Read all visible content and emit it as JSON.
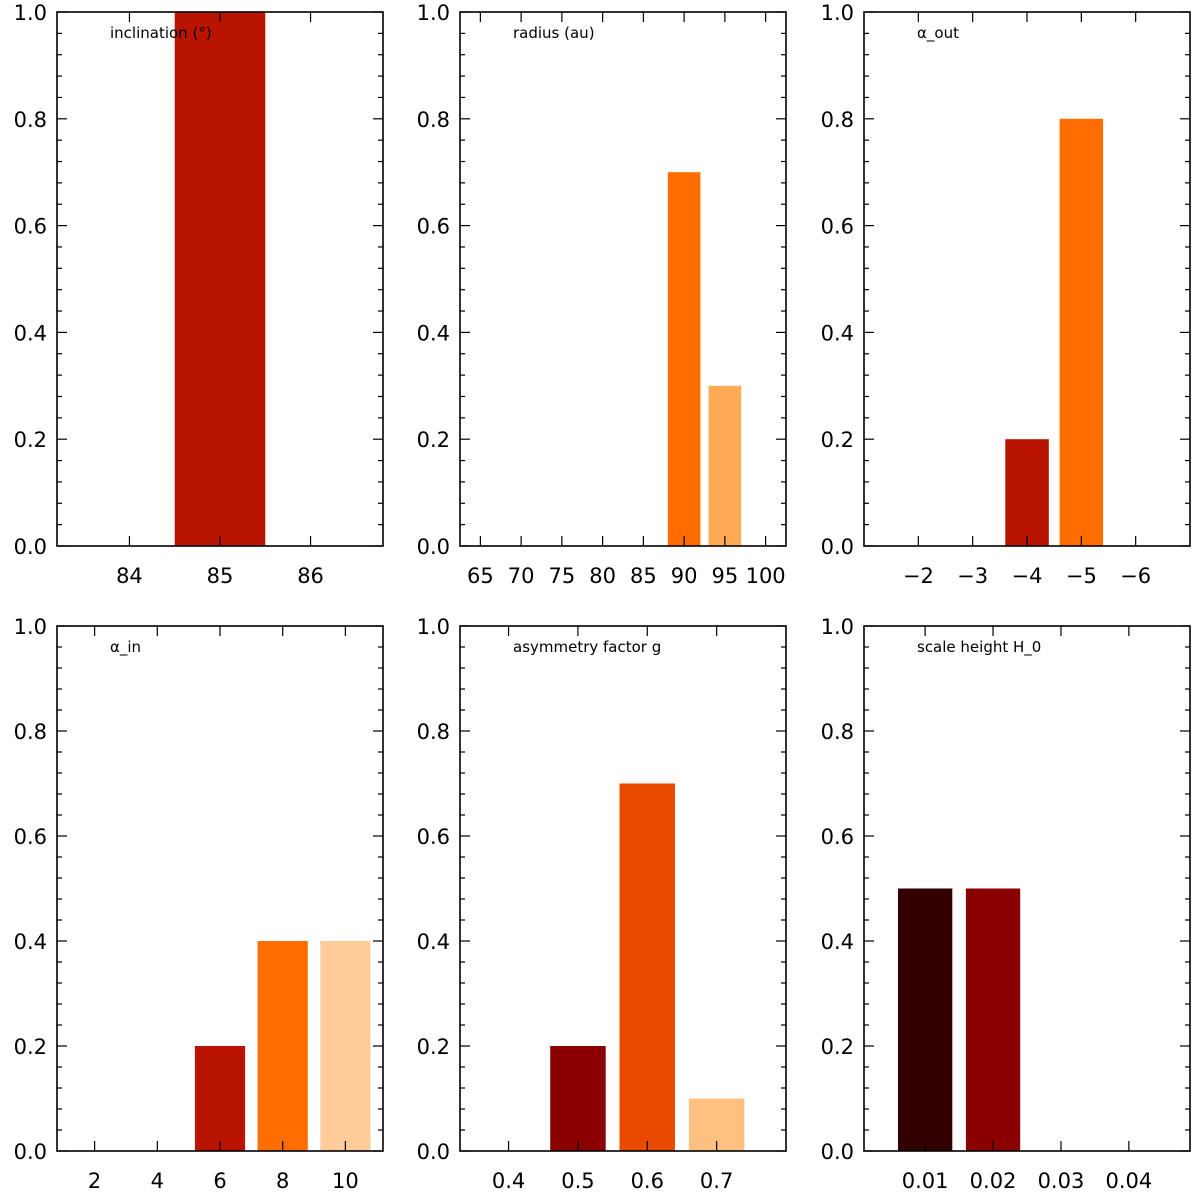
{
  "chart_data": [
    {
      "type": "bar",
      "title": "inclination (°)",
      "xlabel": "",
      "ylabel": "",
      "ylim": [
        0,
        1.0
      ],
      "yticks": [
        "0.0",
        "0.2",
        "0.4",
        "0.6",
        "0.8",
        "1.0"
      ],
      "xlim": [
        83.2,
        86.8
      ],
      "xticks": [
        {
          "value": 84,
          "label": "84"
        },
        {
          "value": 85,
          "label": "85"
        },
        {
          "value": 86,
          "label": "86"
        }
      ],
      "bars": [
        {
          "x": 85,
          "width": 1.0,
          "value": 1.0,
          "color": "#b81400"
        }
      ]
    },
    {
      "type": "bar",
      "title": "radius (au)",
      "xlabel": "",
      "ylabel": "",
      "ylim": [
        0,
        1.0
      ],
      "yticks": [
        "0.0",
        "0.2",
        "0.4",
        "0.6",
        "0.8",
        "1.0"
      ],
      "xlim": [
        62.5,
        102.5
      ],
      "xticks": [
        {
          "value": 65,
          "label": "65"
        },
        {
          "value": 70,
          "label": "70"
        },
        {
          "value": 75,
          "label": "75"
        },
        {
          "value": 80,
          "label": "80"
        },
        {
          "value": 85,
          "label": "85"
        },
        {
          "value": 90,
          "label": "90"
        },
        {
          "value": 95,
          "label": "95"
        },
        {
          "value": 100,
          "label": "100"
        }
      ],
      "bars": [
        {
          "x": 90,
          "width": 4.0,
          "value": 0.7,
          "color": "#ff6d00"
        },
        {
          "x": 95,
          "width": 4.0,
          "value": 0.3,
          "color": "#ffaa55"
        }
      ]
    },
    {
      "type": "bar",
      "title": "α_out",
      "xlabel": "",
      "ylabel": "",
      "ylim": [
        0,
        1.0
      ],
      "yticks": [
        "0.0",
        "0.2",
        "0.4",
        "0.6",
        "0.8",
        "1.0"
      ],
      "xlim": [
        -1.0,
        -7.0
      ],
      "xticks": [
        {
          "value": -2,
          "label": "−2"
        },
        {
          "value": -3,
          "label": "−3"
        },
        {
          "value": -4,
          "label": "−4"
        },
        {
          "value": -5,
          "label": "−5"
        },
        {
          "value": -6,
          "label": "−6"
        }
      ],
      "bars": [
        {
          "x": -4,
          "width": 0.8,
          "value": 0.2,
          "color": "#b81400"
        },
        {
          "x": -5,
          "width": 0.8,
          "value": 0.8,
          "color": "#ff6d00"
        }
      ]
    },
    {
      "type": "bar",
      "title": "α_in",
      "xlabel": "",
      "ylabel": "",
      "ylim": [
        0,
        1.0
      ],
      "yticks": [
        "0.0",
        "0.2",
        "0.4",
        "0.6",
        "0.8",
        "1.0"
      ],
      "xlim": [
        0.8,
        11.2
      ],
      "xticks": [
        {
          "value": 2,
          "label": "2"
        },
        {
          "value": 4,
          "label": "4"
        },
        {
          "value": 6,
          "label": "6"
        },
        {
          "value": 8,
          "label": "8"
        },
        {
          "value": 10,
          "label": "10"
        }
      ],
      "bars": [
        {
          "x": 6,
          "width": 1.6,
          "value": 0.2,
          "color": "#b81400"
        },
        {
          "x": 8,
          "width": 1.6,
          "value": 0.4,
          "color": "#ff6d00"
        },
        {
          "x": 10,
          "width": 1.6,
          "value": 0.4,
          "color": "#ffcc99"
        }
      ]
    },
    {
      "type": "bar",
      "title": "asymmetry factor g",
      "xlabel": "",
      "ylabel": "",
      "ylim": [
        0,
        1.0
      ],
      "yticks": [
        "0.0",
        "0.2",
        "0.4",
        "0.6",
        "0.8",
        "1.0"
      ],
      "xlim": [
        0.33,
        0.8
      ],
      "xticks": [
        {
          "value": 0.4,
          "label": "0.4"
        },
        {
          "value": 0.5,
          "label": "0.5"
        },
        {
          "value": 0.6,
          "label": "0.6"
        },
        {
          "value": 0.7,
          "label": "0.7"
        }
      ],
      "bars": [
        {
          "x": 0.5,
          "width": 0.08,
          "value": 0.2,
          "color": "#8a0000"
        },
        {
          "x": 0.6,
          "width": 0.08,
          "value": 0.7,
          "color": "#e84a00"
        },
        {
          "x": 0.7,
          "width": 0.08,
          "value": 0.1,
          "color": "#ffc080"
        }
      ]
    },
    {
      "type": "bar",
      "title": "scale height H_0",
      "xlabel": "",
      "ylabel": "",
      "ylim": [
        0,
        1.0
      ],
      "yticks": [
        "0.0",
        "0.2",
        "0.4",
        "0.6",
        "0.8",
        "1.0"
      ],
      "xlim": [
        0.001,
        0.049
      ],
      "xticks": [
        {
          "value": 0.01,
          "label": "0.01"
        },
        {
          "value": 0.02,
          "label": "0.02"
        },
        {
          "value": 0.03,
          "label": "0.03"
        },
        {
          "value": 0.04,
          "label": "0.04"
        }
      ],
      "bars": [
        {
          "x": 0.01,
          "width": 0.008,
          "value": 0.5,
          "color": "#320000"
        },
        {
          "x": 0.02,
          "width": 0.008,
          "value": 0.5,
          "color": "#8a0000"
        }
      ]
    }
  ]
}
